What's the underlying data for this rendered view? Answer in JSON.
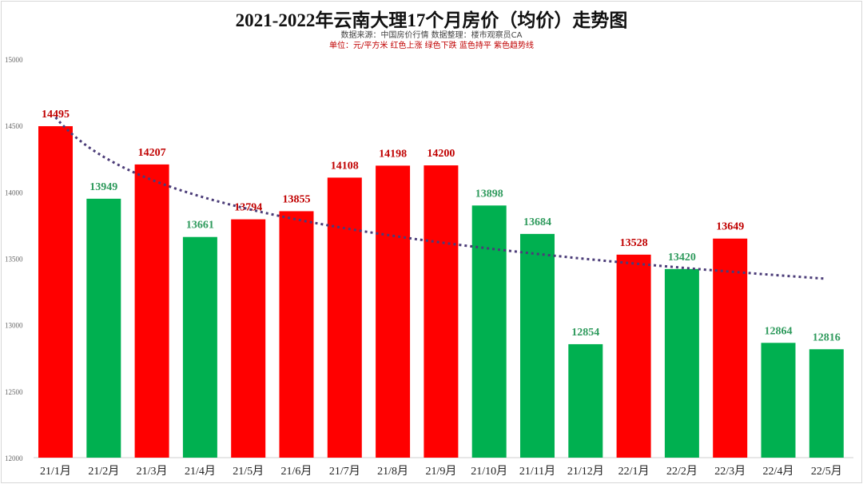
{
  "chart_data": {
    "type": "bar",
    "title": "2021-2022年云南大理17个月房价（均价）走势图",
    "subtitle": "数据来源：中国房价行情  数据整理：楼市观察员CA",
    "note": "单位：元/平方米  红色上涨  绿色下跌  蓝色持平  紫色趋势线",
    "xlabel": "",
    "ylabel": "",
    "ylim": [
      12000,
      15000
    ],
    "yticks": [
      12000,
      12500,
      13000,
      13500,
      14000,
      14500,
      15000
    ],
    "grid": false,
    "categories": [
      "21/1月",
      "21/2月",
      "21/3月",
      "21/4月",
      "21/5月",
      "21/6月",
      "21/7月",
      "21/8月",
      "21/9月",
      "21/10月",
      "21/11月",
      "21/12月",
      "22/1月",
      "22/2月",
      "22/3月",
      "22/4月",
      "22/5月"
    ],
    "values": [
      14495,
      13949,
      14207,
      13661,
      13794,
      13855,
      14108,
      14198,
      14200,
      13898,
      13684,
      12854,
      13528,
      13420,
      13649,
      12864,
      12816
    ],
    "bar_status": [
      "up",
      "down",
      "up",
      "down",
      "up",
      "up",
      "up",
      "up",
      "up",
      "down",
      "down",
      "down",
      "up",
      "down",
      "up",
      "down",
      "down"
    ],
    "colors": {
      "up": "#ff0000",
      "down": "#00b050",
      "up_label": "#c00000",
      "down_label": "#2e9a5c",
      "trend": "#4b3c78"
    },
    "trendline": {
      "type": "logarithmic",
      "style": "dotted",
      "color": "#4b3c78"
    }
  }
}
